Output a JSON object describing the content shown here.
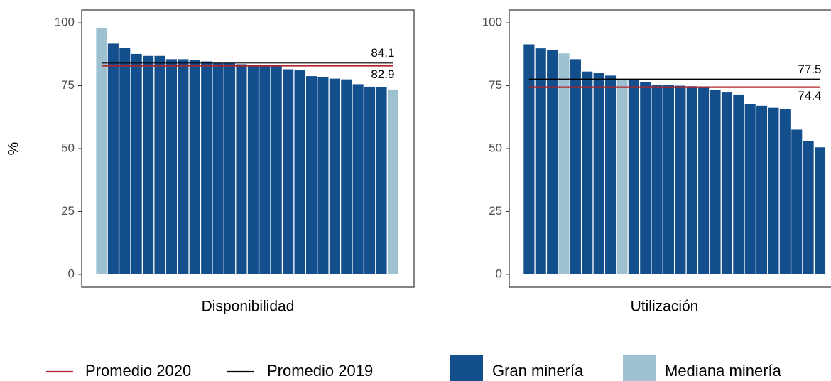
{
  "legend": [
    {
      "name": "Promedio 2020",
      "color": "#b2222a",
      "kind": "line"
    },
    {
      "name": "Promedio 2019",
      "color": "#000000",
      "kind": "line"
    },
    {
      "name": "Gran minería",
      "color": "#134f8c",
      "kind": "bar"
    },
    {
      "name": "Mediana minería",
      "color": "#9dc1d1",
      "kind": "bar"
    }
  ],
  "chart_data": [
    {
      "type": "bar",
      "xlabel": "Disponibilidad",
      "ylabel": "%",
      "ylim": [
        -5.1,
        105.1
      ],
      "yticks": [
        0,
        25,
        50,
        75,
        100
      ],
      "series": [
        {
          "value": 82.9
        },
        {
          "value": 84.1
        },
        {
          "values": [
            null,
            91.7,
            90,
            87.6,
            86.8,
            86.8,
            85.5,
            85.5,
            85.2,
            84.6,
            84.2,
            84,
            83.5,
            83.3,
            83,
            82.8,
            81.5,
            81.3,
            78.8,
            78.3,
            77.8,
            77.5,
            75.6,
            74.6,
            74.4,
            null
          ]
        },
        {
          "values": [
            98,
            null,
            null,
            null,
            null,
            null,
            null,
            null,
            null,
            null,
            null,
            null,
            null,
            null,
            null,
            null,
            null,
            null,
            null,
            null,
            null,
            null,
            null,
            null,
            null,
            73.5
          ]
        }
      ]
    },
    {
      "type": "bar",
      "xlabel": "Utilización",
      "ylim": [
        -5.1,
        105.1
      ],
      "yticks": [
        0,
        25,
        50,
        75,
        100
      ],
      "series": [
        {
          "value": 74.4
        },
        {
          "value": 77.5
        },
        {
          "values": [
            91.4,
            89.8,
            89,
            null,
            85.5,
            80.6,
            80,
            79,
            null,
            77.2,
            76.5,
            75.3,
            75.2,
            75,
            74.8,
            74.6,
            73.2,
            72.3,
            71.5,
            67.6,
            67,
            66.2,
            65.7,
            57.5,
            52.9,
            50.5
          ]
        },
        {
          "values": [
            null,
            null,
            null,
            87.8,
            null,
            null,
            null,
            null,
            77.4,
            null,
            null,
            null,
            null,
            null,
            null,
            null,
            null,
            null,
            null,
            null,
            null,
            null,
            null,
            null,
            null,
            null
          ]
        }
      ]
    }
  ]
}
